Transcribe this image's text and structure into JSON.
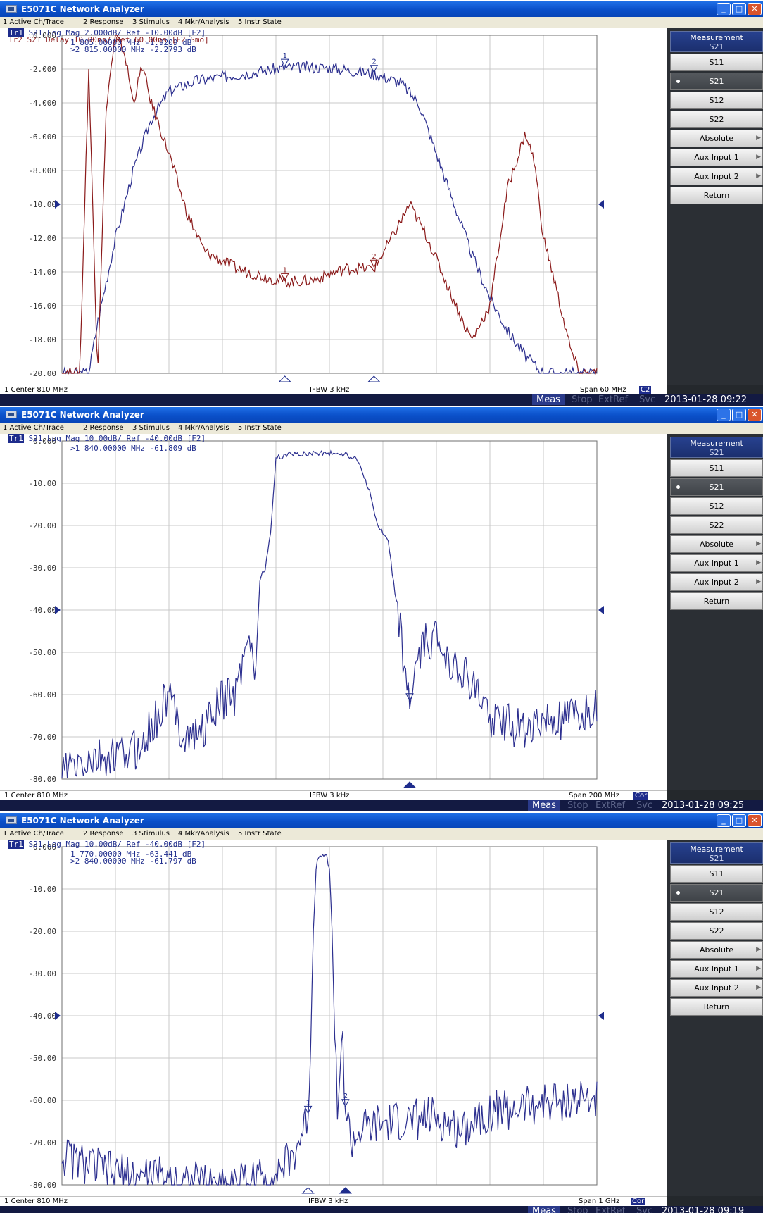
{
  "panels": [
    {
      "title": "E5071C Network Analyzer",
      "menu": [
        "1 Active Ch/Trace",
        "2 Response",
        "3 Stimulus",
        "4 Mkr/Analysis",
        "5 Instr State"
      ],
      "trace_lines": [
        {
          "tag": "Tr1",
          "text": " S21 Log Mag 2.000dB/ Ref -10.00dB [F2]",
          "color": "#1e2c8c"
        },
        {
          "tag": "Tr2",
          "text": " S21 Delay 10.00ns/ Ref 60.00ns [F2 Smo]",
          "color": "#8b1a1a"
        }
      ],
      "y_labels": [
        "0.000",
        "-2.000",
        "-4.000",
        "-6.000",
        "-8.000",
        "-10.00",
        "-12.00",
        "-14.00",
        "-16.00",
        "-18.00",
        "-20.00"
      ],
      "marker_lines": [
        {
          "n": "1",
          "text": "805.00000 MHz  -1.9209 dB"
        },
        {
          "n": ">2",
          "text": "815.00000 MHz  -2.2793 dB"
        }
      ],
      "status": {
        "left": "1  Center 810 MHz",
        "middle": "IFBW 3 kHz",
        "right": "Span 60 MHz",
        "badge": "C2"
      },
      "bottom": {
        "meas": "Meas",
        "items": [
          "Stop",
          "ExtRef",
          "Svc"
        ],
        "time": "2013-01-28 09:22"
      },
      "softkeys": {
        "header": "Measurement",
        "header_sub": "S21",
        "buttons": [
          "S11",
          "S21",
          "S12",
          "S22",
          "Absolute",
          "Aux Input 1",
          "Aux Input 2",
          "Return"
        ],
        "selected": 1
      },
      "chart_data": {
        "type": "line",
        "ylim": [
          -20,
          0
        ],
        "ref_level": -10,
        "x_center_mhz": 810,
        "x_span_mhz": 60,
        "series": [
          {
            "role": "S21 Log Mag",
            "color": "#2c2f8f",
            "x": [
              780,
              783,
              784,
              786,
              788,
              790,
              792,
              795,
              800,
              805,
              810,
              815,
              818,
              820,
              822,
              824,
              826,
              828,
              830,
              832,
              834,
              836,
              838,
              840
            ],
            "y": [
              -20,
              -20,
              -17,
              -12,
              -8,
              -5,
              -3.3,
              -2.7,
              -2.3,
              -1.92,
              -1.9,
              -2.28,
              -2.8,
              -4,
              -7,
              -10,
              -13,
              -15.5,
              -17.5,
              -19,
              -20,
              -20,
              -20,
              -20
            ]
          },
          {
            "role": "S21 Delay",
            "color": "#8b1a1a",
            "x": [
              780,
              782,
              783,
              784,
              785,
              786,
              787,
              788,
              789,
              790,
              792,
              794,
              796,
              800,
              805,
              808,
              812,
              815,
              817,
              819,
              821,
              823,
              825,
              826,
              828,
              830,
              832,
              833,
              834,
              835,
              837,
              838
            ],
            "y": [
              -20,
              -20,
              -2,
              -20,
              -4,
              0,
              -1,
              -4,
              -1.8,
              -4,
              -7,
              -10.5,
              -12.8,
              -13.9,
              -14.6,
              -14.5,
              -13.8,
              -13.8,
              -12,
              -10,
              -12,
              -14.5,
              -17,
              -18,
              -16,
              -9,
              -5.8,
              -7.5,
              -12,
              -14,
              -18.5,
              -20
            ]
          }
        ],
        "markers": [
          {
            "n": "1",
            "trace": "S21 Log Mag",
            "x": 805,
            "y": -1.92
          },
          {
            "n": "2",
            "trace": "S21 Log Mag",
            "x": 815,
            "y": -2.28
          },
          {
            "n": "1",
            "trace": "S21 Delay",
            "x": 805,
            "y": -14.6
          },
          {
            "n": "2",
            "trace": "S21 Delay",
            "x": 815,
            "y": -13.8
          }
        ]
      }
    },
    {
      "title": "E5071C Network Analyzer",
      "menu": [
        "1 Active Ch/Trace",
        "2 Response",
        "3 Stimulus",
        "4 Mkr/Analysis",
        "5 Instr State"
      ],
      "trace_lines": [
        {
          "tag": "Tr1",
          "text": " S21 Log Mag 10.00dB/ Ref -40.00dB [F2]",
          "color": "#1e2c8c"
        }
      ],
      "y_labels": [
        "0.000",
        "-10.00",
        "-20.00",
        "-30.00",
        "-40.00",
        "-50.00",
        "-60.00",
        "-70.00",
        "-80.00"
      ],
      "marker_lines": [
        {
          "n": ">1",
          "text": "840.00000 MHz  -61.809 dB"
        }
      ],
      "status": {
        "left": "1  Center 810 MHz",
        "middle": "IFBW 3 kHz",
        "right": "Span 200 MHz",
        "badge": "Cor"
      },
      "bottom": {
        "meas": "Meas",
        "items": [
          "Stop",
          "ExtRef",
          "Svc"
        ],
        "time": "2013-01-28 09:25"
      },
      "softkeys": {
        "header": "Measurement",
        "header_sub": "S21",
        "buttons": [
          "S11",
          "S21",
          "S12",
          "S22",
          "Absolute",
          "Aux Input 1",
          "Aux Input 2",
          "Return"
        ],
        "selected": 1
      },
      "chart_data": {
        "type": "line",
        "ylim": [
          -80,
          0
        ],
        "ref_level": -40,
        "x_center_mhz": 810,
        "x_span_mhz": 200,
        "series": [
          {
            "role": "S21 Log Mag",
            "color": "#2c2f8f",
            "x": [
              710,
              720,
              730,
              740,
              745,
              750,
              755,
              760,
              765,
              770,
              775,
              778,
              780,
              782,
              784,
              786,
              788,
              790,
              795,
              800,
              805,
              810,
              815,
              820,
              822,
              825,
              828,
              832,
              836,
              840,
              843,
              846,
              850,
              860,
              870,
              880,
              890,
              900,
              905,
              910
            ],
            "y": [
              -78,
              -76,
              -75,
              -72,
              -66,
              -60,
              -69,
              -70,
              -66,
              -61,
              -60,
              -50,
              -43,
              -58,
              -33,
              -30,
              -22,
              -4,
              -3.2,
              -3,
              -2.8,
              -2.9,
              -3.1,
              -4,
              -6.5,
              -12,
              -20,
              -24,
              -43,
              -62,
              -53,
              -48,
              -47,
              -55,
              -65,
              -68,
              -67,
              -66,
              -65,
              -63
            ]
          }
        ],
        "markers": [
          {
            "n": "1",
            "trace": "S21 Log Mag",
            "x": 840,
            "y": -61.8
          }
        ]
      }
    },
    {
      "title": "E5071C Network Analyzer",
      "menu": [
        "1 Active Ch/Trace",
        "2 Response",
        "3 Stimulus",
        "4 Mkr/Analysis",
        "5 Instr State"
      ],
      "trace_lines": [
        {
          "tag": "Tr1",
          "text": " S21 Log Mag 10.00dB/ Ref -40.00dB [F2]",
          "color": "#1e2c8c"
        }
      ],
      "y_labels": [
        "0.000",
        "-10.00",
        "-20.00",
        "-30.00",
        "-40.00",
        "-50.00",
        "-60.00",
        "-70.00",
        "-80.00"
      ],
      "marker_lines": [
        {
          "n": "1",
          "text": "770.00000 MHz  -63.441 dB"
        },
        {
          "n": ">2",
          "text": "840.00000 MHz  -61.797 dB"
        }
      ],
      "status": {
        "left": "1  Center 810 MHz",
        "middle": "IFBW 3 kHz",
        "right": "Span 1 GHz",
        "badge": "Cor"
      },
      "bottom": {
        "meas": "Meas",
        "items": [
          "Stop",
          "ExtRef",
          "Svc"
        ],
        "time": "2013-01-28 09:19"
      },
      "softkeys": {
        "header": "Measurement",
        "header_sub": "S21",
        "buttons": [
          "S11",
          "S21",
          "S12",
          "S22",
          "Absolute",
          "Aux Input 1",
          "Aux Input 2",
          "Return"
        ],
        "selected": 1
      },
      "chart_data": {
        "type": "line",
        "ylim": [
          -80,
          0
        ],
        "ref_level": -40,
        "x_center_mhz": 810,
        "x_span_mhz": 1000,
        "series": [
          {
            "role": "S21 Log Mag",
            "color": "#2c2f8f",
            "x": [
              310,
              350,
              400,
              450,
              500,
              550,
              600,
              650,
              700,
              720,
              740,
              755,
              765,
              770,
              775,
              780,
              785,
              790,
              795,
              800,
              805,
              810,
              815,
              820,
              825,
              830,
              835,
              840,
              850,
              860,
              870,
              880,
              900,
              950,
              1000,
              1050,
              1100,
              1150,
              1200,
              1250,
              1300
            ],
            "y": [
              -73,
              -75,
              -77,
              -78,
              -78,
              -79,
              -80,
              -79,
              -78,
              -76,
              -74,
              -69,
              -66,
              -63.4,
              -45,
              -20,
              -5,
              -2,
              -1.8,
              -1.9,
              -2.5,
              -5,
              -20,
              -45,
              -60,
              -54,
              -47,
              -61.8,
              -70,
              -69,
              -67,
              -67,
              -66,
              -65,
              -64,
              -67,
              -63,
              -62,
              -61,
              -60,
              -60
            ]
          }
        ],
        "markers": [
          {
            "n": "1",
            "trace": "S21 Log Mag",
            "x": 770,
            "y": -63.4
          },
          {
            "n": "2",
            "trace": "S21 Log Mag",
            "x": 840,
            "y": -61.8
          }
        ]
      }
    }
  ]
}
